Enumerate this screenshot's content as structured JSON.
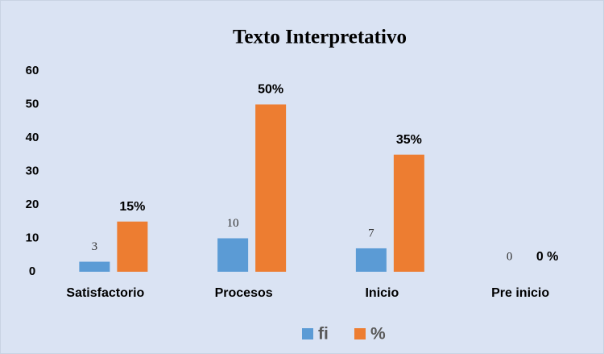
{
  "chart_data": {
    "type": "bar",
    "title": "Texto Interpretativo",
    "categories": [
      "Satisfactorio",
      "Procesos",
      "Inicio",
      "Pre inicio"
    ],
    "series": [
      {
        "name": "fi",
        "color": "#5b9bd5",
        "values": [
          3,
          10,
          7,
          0
        ]
      },
      {
        "name": "%",
        "color": "#ed7d31",
        "values": [
          15,
          50,
          35,
          0
        ],
        "value_labels": [
          "15%",
          "50%",
          "35%",
          "0 %"
        ]
      }
    ],
    "ylim": [
      0,
      60
    ],
    "yticks": [
      0,
      10,
      20,
      30,
      40,
      50,
      60
    ],
    "grid": false,
    "legend": "bottom"
  }
}
